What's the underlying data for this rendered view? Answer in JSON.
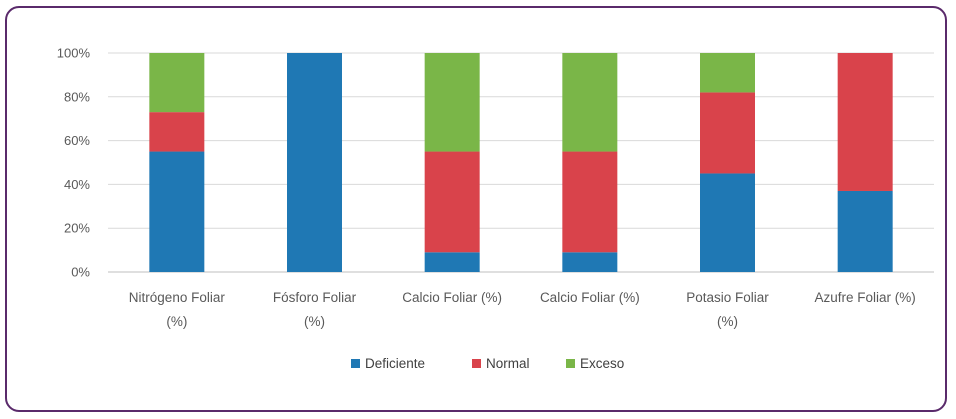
{
  "chart_data": {
    "type": "bar",
    "stacked": true,
    "percent_stacked": true,
    "categories": [
      [
        "Nitrógeno Foliar",
        "(%)"
      ],
      [
        "Fósforo Foliar",
        "(%)"
      ],
      [
        "Calcio Foliar (%)"
      ],
      [
        "Calcio Foliar (%)"
      ],
      [
        "Potasio Foliar",
        "(%)"
      ],
      [
        "Azufre Foliar (%)"
      ]
    ],
    "series": [
      {
        "name": "Deficiente",
        "color": "#1f78b4",
        "values": [
          55,
          100,
          9,
          9,
          45,
          37
        ]
      },
      {
        "name": "Normal",
        "color": "#d9434b",
        "values": [
          18,
          0,
          46,
          46,
          37,
          63
        ]
      },
      {
        "name": "Exceso",
        "color": "#7ab648",
        "values": [
          27,
          0,
          45,
          45,
          18,
          0
        ]
      }
    ],
    "ylim": [
      0,
      100
    ],
    "yticks": [
      "0%",
      "20%",
      "40%",
      "60%",
      "80%",
      "100%"
    ],
    "grid": true,
    "legend_position": "bottom"
  }
}
